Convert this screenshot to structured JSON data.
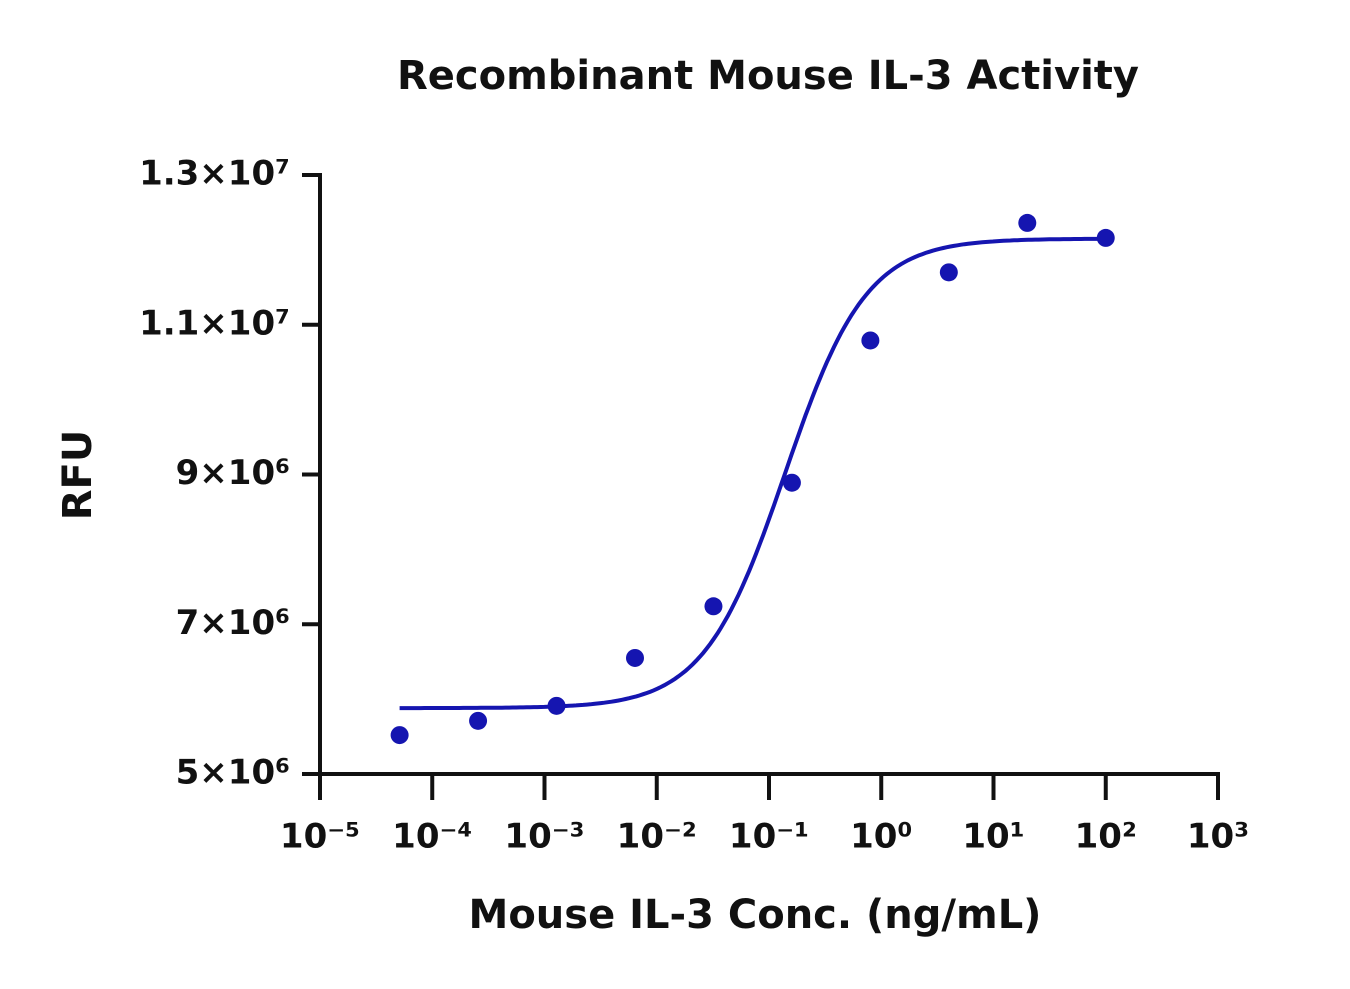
{
  "chart_data": {
    "type": "scatter",
    "title": "Recombinant Mouse IL-3 Activity",
    "x_label": "Mouse IL-3 Conc. (ng/mL)",
    "y_label": "RFU",
    "xscale": "log",
    "x": [
      5.12e-05,
      0.000256,
      0.00128,
      0.0064,
      0.032,
      0.16,
      0.8,
      4,
      20,
      100
    ],
    "values": [
      5520000,
      5710000,
      5910000,
      6550000,
      7240000,
      8890000,
      10790000,
      11700000,
      12360000,
      12160000
    ],
    "color": "#1515b0",
    "fit": {
      "bottom": 5880000,
      "top": 12150000,
      "ec50": 0.139,
      "hill": 1.2
    },
    "xlim": [
      1e-05,
      1000
    ],
    "xticks": [
      {
        "value": 1e-05,
        "label": "10⁻⁵"
      },
      {
        "value": 0.0001,
        "label": "10⁻⁴"
      },
      {
        "value": 0.001,
        "label": "10⁻³"
      },
      {
        "value": 0.01,
        "label": "10⁻²"
      },
      {
        "value": 0.1,
        "label": "10⁻¹"
      },
      {
        "value": 1,
        "label": "10⁰"
      },
      {
        "value": 10,
        "label": "10¹"
      },
      {
        "value": 100,
        "label": "10²"
      },
      {
        "value": 1000,
        "label": "10³"
      }
    ],
    "ylim": [
      5000000,
      13000000
    ],
    "yticks": [
      {
        "value": 5000000,
        "label": "5×10⁶"
      },
      {
        "value": 7000000,
        "label": "7×10⁶"
      },
      {
        "value": 9000000,
        "label": "9×10⁶"
      },
      {
        "value": 11000000,
        "label": "1.1×10⁷"
      },
      {
        "value": 13000000,
        "label": "1.3×10⁷"
      }
    ],
    "grid": false
  }
}
